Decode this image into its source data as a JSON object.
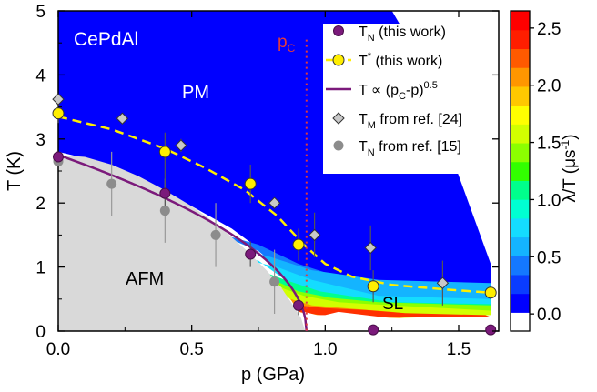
{
  "chart_data": {
    "type": "scatter",
    "title": "",
    "xlabel": "p (GPa)",
    "ylabel": "T (K)",
    "xlim": [
      0,
      1.65
    ],
    "ylim": [
      0,
      5
    ],
    "xticks": [
      "0.0",
      "0.5",
      "1.0",
      "1.5"
    ],
    "yticks": [
      "0",
      "1",
      "2",
      "3",
      "4",
      "5"
    ],
    "annotations": {
      "sample": "CePdAl",
      "pm": "PM",
      "afm": "AFM",
      "sl": "SL",
      "pc": "p",
      "pc_sub": "C",
      "pc_value": 0.93
    },
    "series": [
      {
        "name": "T_N (this work)",
        "marker": "circle",
        "color": "#7b1a7b",
        "points": [
          [
            0.0,
            2.72
          ],
          [
            0.4,
            2.15
          ],
          [
            0.72,
            1.2
          ],
          [
            0.9,
            0.4
          ],
          [
            1.18,
            0.02
          ],
          [
            1.62,
            0.02
          ]
        ],
        "yerr": [
          0,
          0.35,
          0.2,
          0.15,
          0,
          0
        ]
      },
      {
        "name": "T* (this work)",
        "marker": "circle",
        "color": "#ffee00",
        "points": [
          [
            0.0,
            3.4
          ],
          [
            0.4,
            2.8
          ],
          [
            0.72,
            2.3
          ],
          [
            0.9,
            1.35
          ],
          [
            1.18,
            0.7
          ],
          [
            1.62,
            0.6
          ]
        ],
        "yerr": [
          0.15,
          0.3,
          0.3,
          0.25,
          0.25,
          0.1
        ]
      },
      {
        "name": "T ∝ (p_C-p)^0.5",
        "type": "fit",
        "color": "#7b1a7b"
      },
      {
        "name": "T_M from ref. [24]",
        "marker": "diamond",
        "color": "#c8c8c8",
        "points": [
          [
            0.0,
            3.62
          ],
          [
            0.24,
            3.32
          ],
          [
            0.46,
            2.9
          ],
          [
            0.81,
            2.0
          ],
          [
            0.96,
            1.5
          ],
          [
            1.17,
            1.3
          ],
          [
            1.44,
            0.75
          ]
        ],
        "yerr": [
          0,
          0,
          0.1,
          0,
          0.35,
          0.35,
          0.35
        ]
      },
      {
        "name": "T_N from ref. [15]",
        "marker": "circle",
        "color": "#8c8c8c",
        "points": [
          [
            0.0,
            2.65
          ],
          [
            0.2,
            2.3
          ],
          [
            0.4,
            1.88
          ],
          [
            0.59,
            1.5
          ],
          [
            0.81,
            0.77
          ]
        ],
        "yerr": [
          0,
          0.5,
          0.5,
          0.5,
          0.5
        ]
      }
    ],
    "colorbar": {
      "label": "λ/T (μs",
      "label_sup": "-1",
      "label_end": ")",
      "range": [
        -0.15,
        2.65
      ],
      "ticks": [
        "0.0",
        "0.5",
        "1.0",
        "1.5",
        "2.0",
        "2.5"
      ],
      "colors": [
        "#ffffff",
        "#0000ff",
        "#0a3cff",
        "#1478ff",
        "#14b4ff",
        "#14dcff",
        "#00ffd2",
        "#00ff8c",
        "#32ff00",
        "#8cff00",
        "#d2ff00",
        "#ffff00",
        "#ffc800",
        "#ff9600",
        "#ff5a00",
        "#ff1e00",
        "#ff0000"
      ]
    },
    "legend": {
      "position": "top-right",
      "labels": [
        {
          "main": "T",
          "sub": "N",
          "rest": " (this work)"
        },
        {
          "main": "T",
          "sup": "*",
          "rest": " (this work)"
        },
        {
          "main": "T ∝ (p",
          "sub": "C",
          "rest": "-p)",
          "sup2": "0.5"
        },
        {
          "main": "T",
          "sub": "M",
          "rest": " from ref. [24]"
        },
        {
          "main": "T",
          "sub": "N",
          "rest": " from ref. [15]"
        }
      ]
    }
  }
}
